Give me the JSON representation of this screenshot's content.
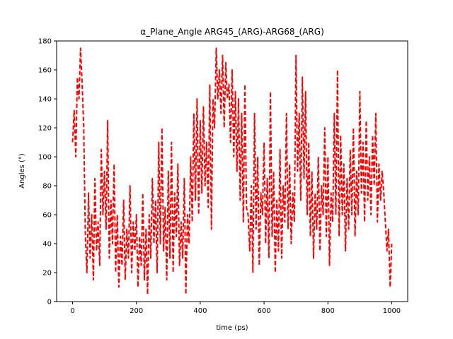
{
  "chart_data": {
    "type": "line",
    "title": "α_Plane_Angle ARG45_(ARG)-ARG68_(ARG)",
    "xlabel": "time (ps)",
    "ylabel": "Angles (°)",
    "xlim": [
      -50,
      1050
    ],
    "ylim": [
      0,
      180
    ],
    "xticks": [
      0,
      200,
      400,
      600,
      800,
      1000
    ],
    "yticks": [
      0,
      20,
      40,
      60,
      80,
      100,
      120,
      140,
      160,
      180
    ],
    "grid": false,
    "legend": "none",
    "series": [
      {
        "color": "#ff0000",
        "line_style": "dashed",
        "x": [
          0,
          5,
          10,
          15,
          20,
          25,
          30,
          35,
          40,
          45,
          50,
          55,
          60,
          65,
          70,
          75,
          80,
          85,
          90,
          95,
          100,
          105,
          110,
          115,
          120,
          125,
          130,
          135,
          140,
          145,
          150,
          155,
          160,
          165,
          170,
          175,
          180,
          185,
          190,
          195,
          200,
          205,
          210,
          215,
          220,
          225,
          230,
          235,
          240,
          245,
          250,
          255,
          260,
          265,
          270,
          275,
          280,
          285,
          290,
          295,
          300,
          305,
          310,
          315,
          320,
          325,
          330,
          335,
          340,
          345,
          350,
          355,
          360,
          365,
          370,
          375,
          380,
          385,
          390,
          395,
          400,
          405,
          410,
          415,
          420,
          425,
          430,
          435,
          440,
          445,
          450,
          455,
          460,
          465,
          470,
          475,
          480,
          485,
          490,
          495,
          500,
          505,
          510,
          515,
          520,
          525,
          530,
          535,
          540,
          545,
          550,
          555,
          560,
          565,
          570,
          575,
          580,
          585,
          590,
          595,
          600,
          605,
          610,
          615,
          620,
          625,
          630,
          635,
          640,
          645,
          650,
          655,
          660,
          665,
          670,
          675,
          680,
          685,
          690,
          695,
          700,
          705,
          710,
          715,
          720,
          725,
          730,
          735,
          740,
          745,
          750,
          755,
          760,
          765,
          770,
          775,
          780,
          785,
          790,
          795,
          800,
          805,
          810,
          815,
          820,
          825,
          830,
          835,
          840,
          845,
          850,
          855,
          860,
          865,
          870,
          875,
          880,
          885,
          890,
          895,
          900,
          905,
          910,
          915,
          920,
          925,
          930,
          935,
          940,
          945,
          950,
          955,
          960,
          965,
          970,
          975,
          980,
          985,
          990,
          995,
          1000
        ],
        "y": [
          110,
          132,
          100,
          155,
          140,
          175,
          150,
          120,
          45,
          20,
          75,
          30,
          60,
          15,
          85,
          35,
          55,
          25,
          105,
          60,
          90,
          50,
          125,
          30,
          70,
          40,
          95,
          20,
          60,
          10,
          45,
          25,
          70,
          15,
          50,
          30,
          80,
          20,
          55,
          35,
          60,
          10,
          45,
          25,
          75,
          15,
          50,
          5,
          60,
          30,
          85,
          40,
          70,
          20,
          110,
          40,
          120,
          35,
          65,
          15,
          90,
          30,
          110,
          20,
          75,
          45,
          95,
          25,
          55,
          30,
          85,
          5,
          60,
          40,
          100,
          55,
          130,
          70,
          140,
          60,
          125,
          75,
          135,
          80,
          110,
          65,
          150,
          50,
          140,
          120,
          175,
          140,
          160,
          130,
          170,
          120,
          165,
          140,
          150,
          110,
          160,
          100,
          145,
          90,
          140,
          70,
          130,
          55,
          150,
          65,
          60,
          35,
          80,
          20,
          130,
          50,
          100,
          25,
          75,
          60,
          110,
          40,
          85,
          30,
          145,
          45,
          90,
          20,
          70,
          35,
          105,
          30,
          80,
          55,
          130,
          50,
          95,
          40,
          75,
          55,
          170,
          90,
          130,
          70,
          155,
          85,
          145,
          60,
          110,
          45,
          90,
          30,
          75,
          50,
          100,
          35,
          80,
          60,
          120,
          45,
          100,
          25,
          75,
          55,
          130,
          60,
          160,
          45,
          115,
          60,
          95,
          35,
          85,
          50,
          105,
          60,
          120,
          45,
          90,
          60,
          145,
          75,
          110,
          55,
          125,
          70,
          100,
          60,
          115,
          80,
          130,
          55,
          95,
          70,
          90,
          75,
          55,
          35,
          50,
          10,
          40
        ]
      }
    ]
  }
}
